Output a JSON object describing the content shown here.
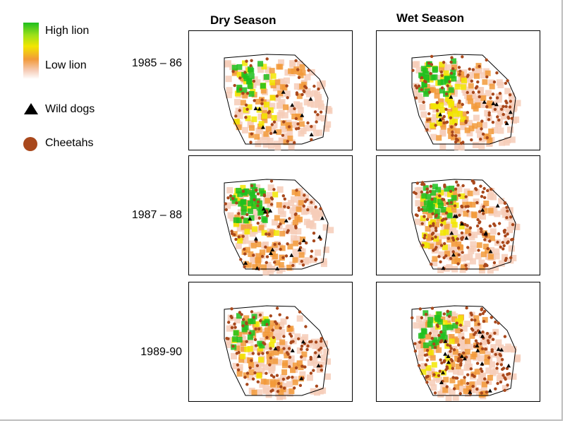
{
  "legend": {
    "high_lion": "High lion",
    "low_lion": "Low lion",
    "wild_dogs": "Wild dogs",
    "cheetahs": "Cheetahs",
    "colors": {
      "high": "#1fbf1f",
      "mid": "#f2e600",
      "low": "#f29a3a",
      "lowest": "#f6cdb8",
      "wild_dog": "#000000",
      "cheetah": "#a9481c"
    }
  },
  "columns": [
    "Dry Season",
    "Wet Season"
  ],
  "rows": [
    "1985 – 86",
    "1987 – 88",
    "1989-90"
  ]
}
